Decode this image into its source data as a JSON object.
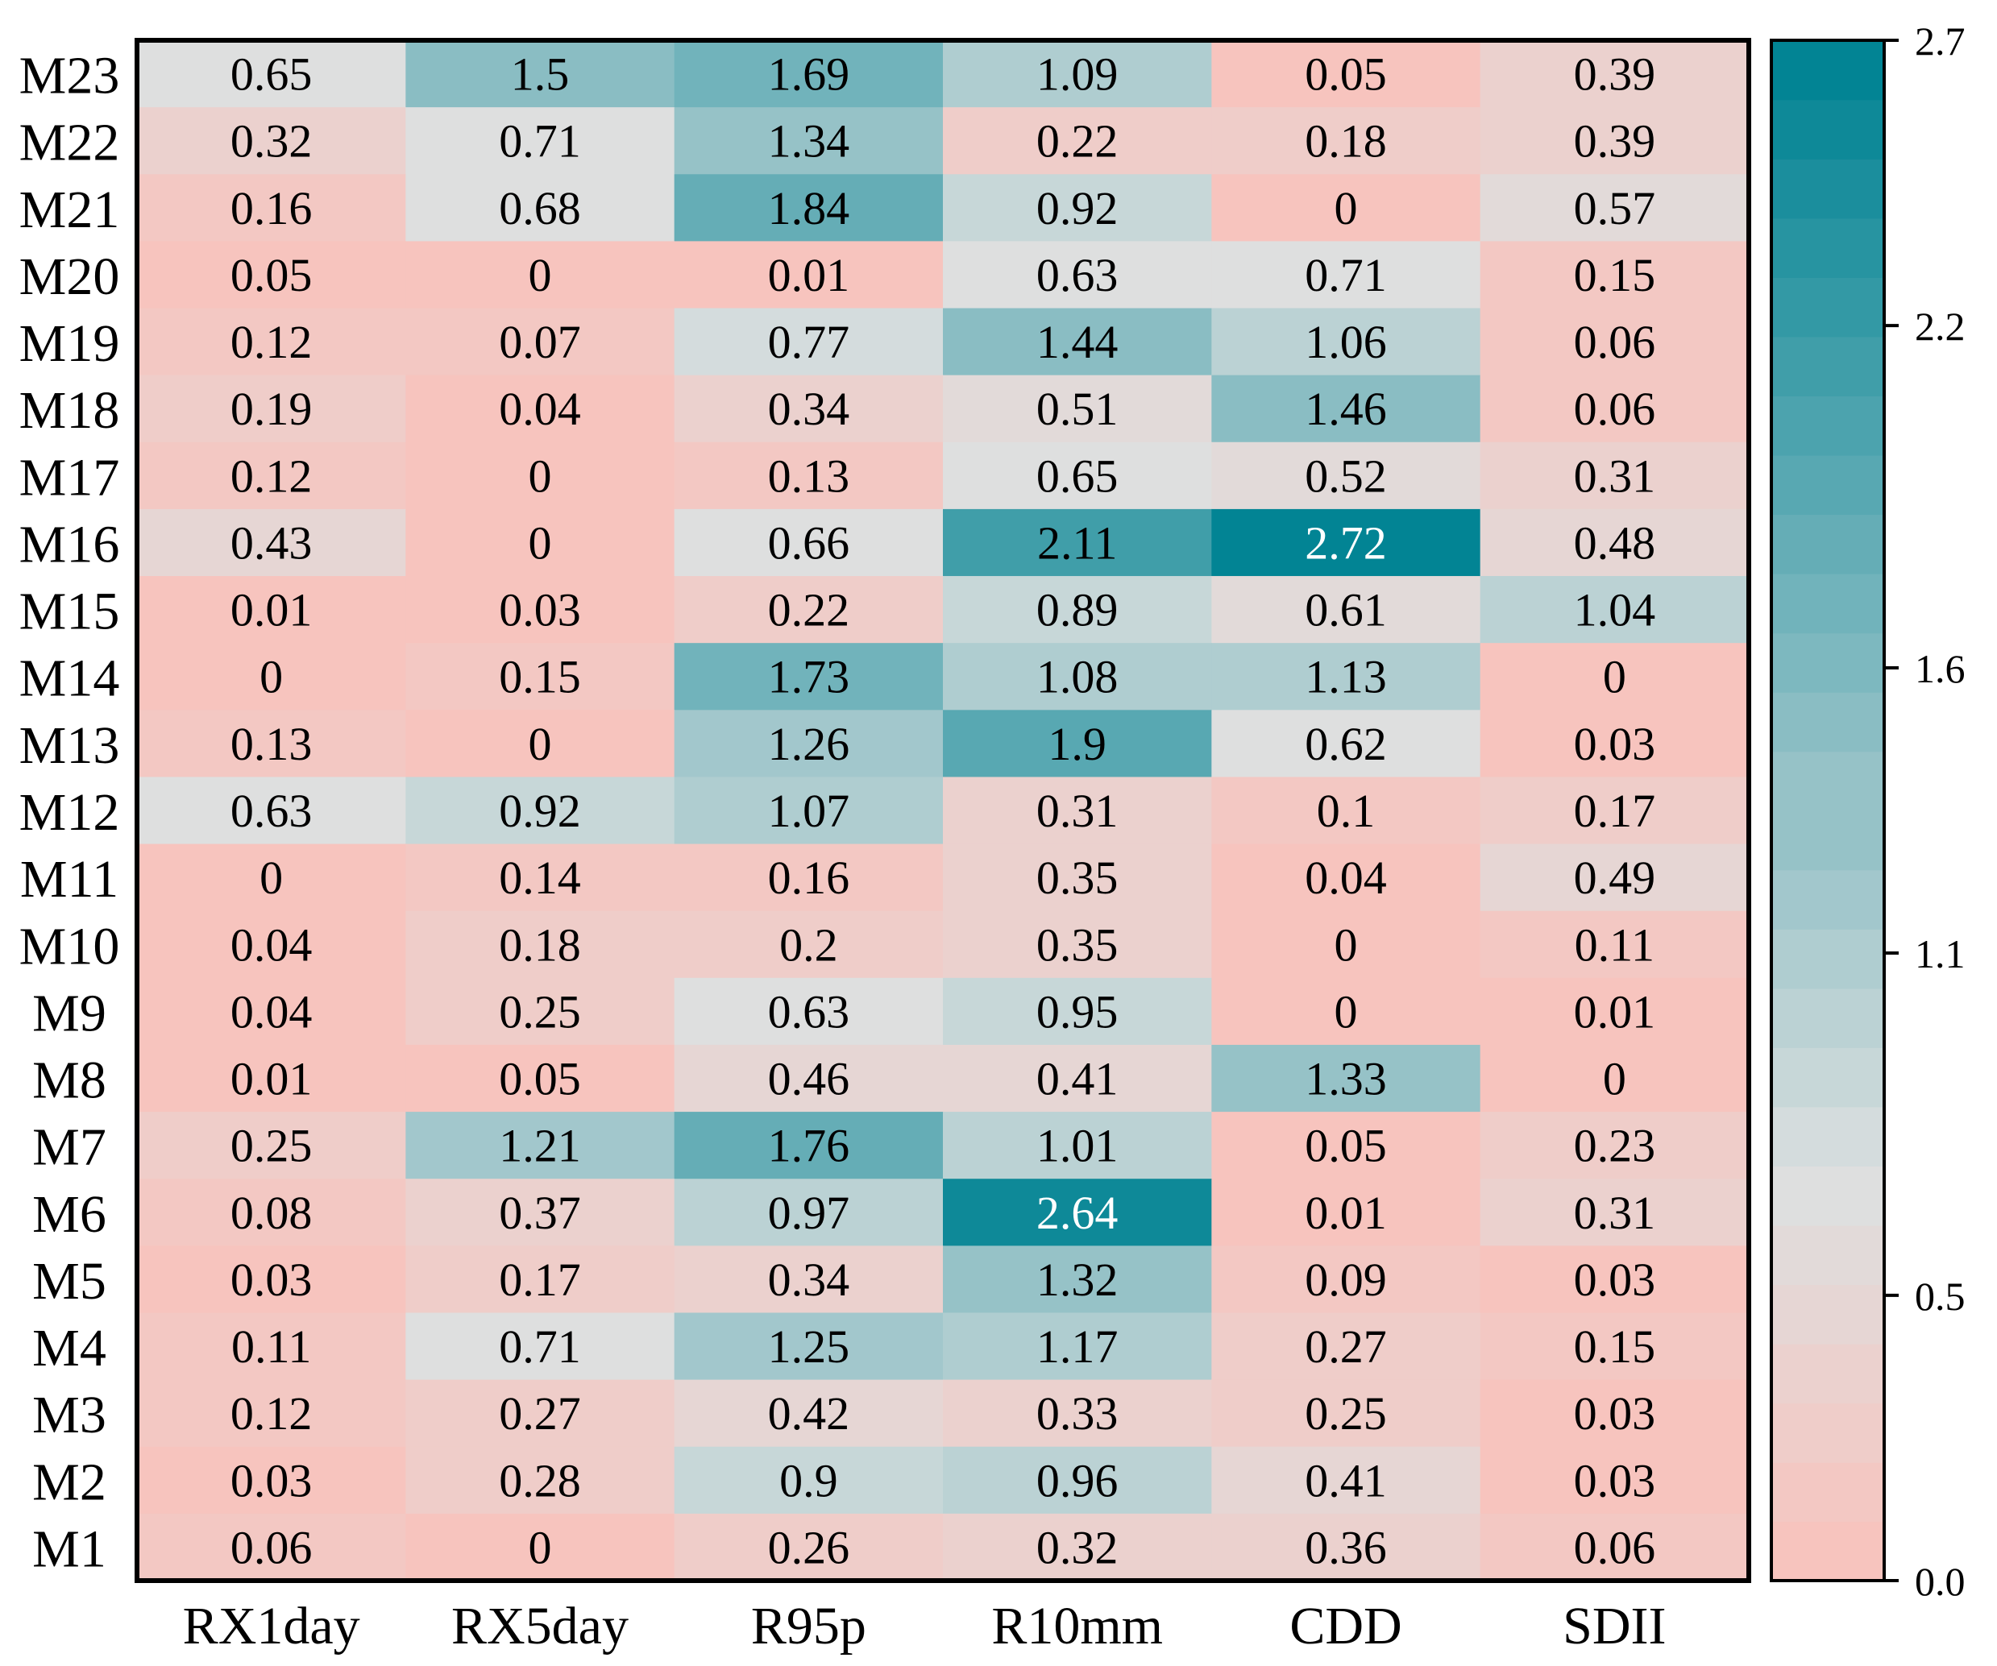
{
  "chart_data": {
    "type": "heatmap",
    "title": "",
    "xlabel": "",
    "ylabel": "",
    "columns": [
      "RX1day",
      "RX5day",
      "R95p",
      "R10mm",
      "CDD",
      "SDII"
    ],
    "rows": [
      "M23",
      "M22",
      "M21",
      "M20",
      "M19",
      "M18",
      "M17",
      "M16",
      "M15",
      "M14",
      "M13",
      "M12",
      "M11",
      "M10",
      "M9",
      "M8",
      "M7",
      "M6",
      "M5",
      "M4",
      "M3",
      "M2",
      "M1"
    ],
    "values": [
      [
        "0.65",
        "1.5",
        "1.69",
        "1.09",
        "0.05",
        "0.39"
      ],
      [
        "0.32",
        "0.71",
        "1.34",
        "0.22",
        "0.18",
        "0.39"
      ],
      [
        "0.16",
        "0.68",
        "1.84",
        "0.92",
        "0",
        "0.57"
      ],
      [
        "0.05",
        "0",
        "0.01",
        "0.63",
        "0.71",
        "0.15"
      ],
      [
        "0.12",
        "0.07",
        "0.77",
        "1.44",
        "1.06",
        "0.06"
      ],
      [
        "0.19",
        "0.04",
        "0.34",
        "0.51",
        "1.46",
        "0.06"
      ],
      [
        "0.12",
        "0",
        "0.13",
        "0.65",
        "0.52",
        "0.31"
      ],
      [
        "0.43",
        "0",
        "0.66",
        "2.11",
        "2.72",
        "0.48"
      ],
      [
        "0.01",
        "0.03",
        "0.22",
        "0.89",
        "0.61",
        "1.04"
      ],
      [
        "0",
        "0.15",
        "1.73",
        "1.08",
        "1.13",
        "0"
      ],
      [
        "0.13",
        "0",
        "1.26",
        "1.9",
        "0.62",
        "0.03"
      ],
      [
        "0.63",
        "0.92",
        "1.07",
        "0.31",
        "0.1",
        "0.17"
      ],
      [
        "0",
        "0.14",
        "0.16",
        "0.35",
        "0.04",
        "0.49"
      ],
      [
        "0.04",
        "0.18",
        "0.2",
        "0.35",
        "0",
        "0.11"
      ],
      [
        "0.04",
        "0.25",
        "0.63",
        "0.95",
        "0",
        "0.01"
      ],
      [
        "0.01",
        "0.05",
        "0.46",
        "0.41",
        "1.33",
        "0"
      ],
      [
        "0.25",
        "1.21",
        "1.76",
        "1.01",
        "0.05",
        "0.23"
      ],
      [
        "0.08",
        "0.37",
        "0.97",
        "2.64",
        "0.01",
        "0.31"
      ],
      [
        "0.03",
        "0.17",
        "0.34",
        "1.32",
        "0.09",
        "0.03"
      ],
      [
        "0.11",
        "0.71",
        "1.25",
        "1.17",
        "0.27",
        "0.15"
      ],
      [
        "0.12",
        "0.27",
        "0.42",
        "0.33",
        "0.25",
        "0.03"
      ],
      [
        "0.03",
        "0.28",
        "0.9",
        "0.96",
        "0.41",
        "0.03"
      ],
      [
        "0.06",
        "0",
        "0.26",
        "0.32",
        "0.36",
        "0.06"
      ]
    ],
    "colorbar": {
      "range": [
        0.0,
        2.7
      ],
      "ticks": [
        0.0,
        0.5,
        1.1,
        1.6,
        2.2,
        2.7
      ],
      "tick_labels": [
        "0.0",
        "0.5",
        "1.1",
        "1.6",
        "2.2",
        "2.7"
      ],
      "colors": {
        "low": "#f7c4be",
        "mid": "#dde0e0",
        "high": "#028494"
      }
    },
    "grid": false,
    "legend_position": "right"
  }
}
